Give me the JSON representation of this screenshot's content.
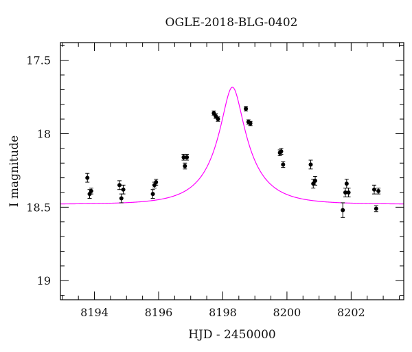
{
  "chart_data": {
    "type": "scatter",
    "title": "OGLE-2018-BLG-0402",
    "xlabel": "HJD - 2450000",
    "ylabel": "I magnitude",
    "xlim": [
      8192.94,
      8203.64
    ],
    "ylim": [
      19.13,
      17.38
    ],
    "y_inverted": true,
    "x_ticks": [
      8194,
      8196,
      8198,
      8200,
      8202
    ],
    "x_tick_labels": [
      "8194",
      "8196",
      "8198",
      "8200",
      "8202"
    ],
    "y_ticks": [
      17.5,
      18,
      18.5,
      19
    ],
    "y_tick_labels": [
      "17.5",
      "18",
      "18.5",
      "19"
    ],
    "x_minor_step": 0.5,
    "y_minor_step": 0.1,
    "grid": false,
    "model_color": "#ff00ff",
    "model": {
      "t0": 8198.3,
      "tE": 1.3,
      "u0": 0.25,
      "baseline": 18.48,
      "blend_fraction": 0.35
    },
    "series": [
      {
        "points": [
          {
            "x": 8193.78,
            "y": 18.3,
            "err": 0.03
          },
          {
            "x": 8193.85,
            "y": 18.41,
            "err": 0.03
          },
          {
            "x": 8193.9,
            "y": 18.39,
            "err": 0.02
          },
          {
            "x": 8194.78,
            "y": 18.35,
            "err": 0.03
          },
          {
            "x": 8194.84,
            "y": 18.44,
            "err": 0.03
          },
          {
            "x": 8194.9,
            "y": 18.38,
            "err": 0.03
          },
          {
            "x": 8195.82,
            "y": 18.41,
            "err": 0.03
          },
          {
            "x": 8195.87,
            "y": 18.35,
            "err": 0.02
          },
          {
            "x": 8195.92,
            "y": 18.33,
            "err": 0.02
          },
          {
            "x": 8196.78,
            "y": 18.16,
            "err": 0.02
          },
          {
            "x": 8196.82,
            "y": 18.22,
            "err": 0.02
          },
          {
            "x": 8196.88,
            "y": 18.16,
            "err": 0.02
          },
          {
            "x": 8197.72,
            "y": 17.86,
            "err": 0.015
          },
          {
            "x": 8197.78,
            "y": 17.88,
            "err": 0.015
          },
          {
            "x": 8197.85,
            "y": 17.9,
            "err": 0.015
          },
          {
            "x": 8198.72,
            "y": 17.83,
            "err": 0.015
          },
          {
            "x": 8198.8,
            "y": 17.92,
            "err": 0.015
          },
          {
            "x": 8198.86,
            "y": 17.93,
            "err": 0.015
          },
          {
            "x": 8199.78,
            "y": 18.13,
            "err": 0.02
          },
          {
            "x": 8199.82,
            "y": 18.12,
            "err": 0.02
          },
          {
            "x": 8199.88,
            "y": 18.21,
            "err": 0.02
          },
          {
            "x": 8200.74,
            "y": 18.21,
            "err": 0.03
          },
          {
            "x": 8200.82,
            "y": 18.34,
            "err": 0.03
          },
          {
            "x": 8200.88,
            "y": 18.32,
            "err": 0.03
          },
          {
            "x": 8201.74,
            "y": 18.52,
            "err": 0.05
          },
          {
            "x": 8201.82,
            "y": 18.4,
            "err": 0.03
          },
          {
            "x": 8201.86,
            "y": 18.34,
            "err": 0.03
          },
          {
            "x": 8201.92,
            "y": 18.4,
            "err": 0.03
          },
          {
            "x": 8202.72,
            "y": 18.38,
            "err": 0.03
          },
          {
            "x": 8202.78,
            "y": 18.51,
            "err": 0.02
          },
          {
            "x": 8202.85,
            "y": 18.39,
            "err": 0.02
          }
        ]
      }
    ]
  }
}
